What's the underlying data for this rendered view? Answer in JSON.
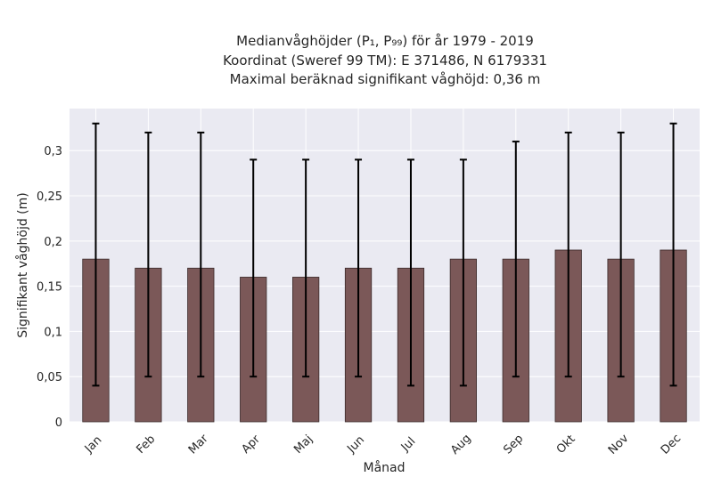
{
  "chart_data": {
    "type": "bar",
    "title_lines": [
      "Medianvåghöjder (P₁, P₉₉) för år 1979 - 2019",
      "Koordinat (Sweref 99 TM): E 371486, N 6179331",
      "Maximal beräknad signifikant våghöjd: 0,36 m"
    ],
    "xlabel": "Månad",
    "ylabel": "Signifikant våghöjd (m)",
    "categories": [
      "Jan",
      "Feb",
      "Mar",
      "Apr",
      "Maj",
      "Jun",
      "Jul",
      "Aug",
      "Sep",
      "Okt",
      "Nov",
      "Dec"
    ],
    "values": [
      0.18,
      0.17,
      0.17,
      0.16,
      0.16,
      0.17,
      0.17,
      0.18,
      0.18,
      0.19,
      0.18,
      0.19
    ],
    "error_low": [
      0.04,
      0.05,
      0.05,
      0.05,
      0.05,
      0.05,
      0.04,
      0.04,
      0.05,
      0.05,
      0.05,
      0.04
    ],
    "error_high": [
      0.33,
      0.32,
      0.32,
      0.29,
      0.29,
      0.29,
      0.29,
      0.29,
      0.31,
      0.32,
      0.32,
      0.33
    ],
    "yticks": [
      0,
      0.05,
      0.1,
      0.15,
      0.2,
      0.25,
      0.3
    ],
    "ytick_labels": [
      "0",
      "0,05",
      "0,1",
      "0,15",
      "0,2",
      "0,25",
      "0,3"
    ],
    "ylim": [
      0,
      0.3465
    ],
    "grid": true,
    "colors": {
      "bar": "#7b5858",
      "bar_edge": "#3a2a2a",
      "error": "#000000",
      "plot_bg": "#eaeaf2",
      "grid": "#ffffff"
    }
  }
}
